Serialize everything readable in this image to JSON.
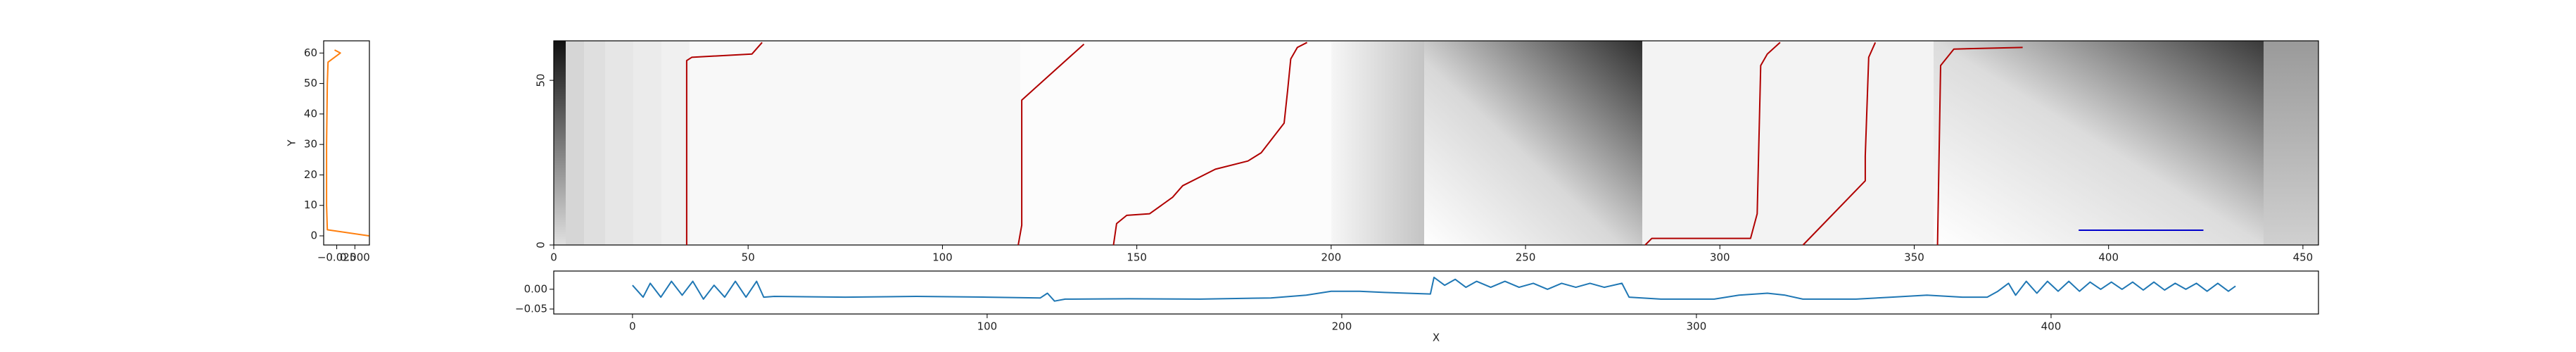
{
  "chart_data": [
    {
      "type": "line-vertical",
      "ylabel": "Y",
      "color": "#ff7f0e",
      "y": [
        0,
        2,
        10,
        30,
        50,
        57,
        60,
        61
      ],
      "values": [
        0.0195,
        -0.038,
        -0.039,
        -0.039,
        -0.038,
        -0.037,
        -0.02,
        -0.028
      ],
      "xlim": [
        -0.043,
        0.02
      ],
      "xticks": [
        {
          "value": -0.025,
          "label": "−0.025"
        },
        {
          "value": 0,
          "label": "0.000"
        }
      ],
      "ylim": [
        -3,
        64
      ],
      "yticks": [
        0,
        10,
        20,
        30,
        40,
        50,
        60
      ]
    },
    {
      "type": "heatmap-path",
      "xlim": [
        0,
        454
      ],
      "xticks": [
        0,
        50,
        100,
        150,
        200,
        250,
        300,
        350,
        400,
        450
      ],
      "ylim": [
        0,
        62
      ],
      "yticks": [
        0,
        50
      ],
      "series": [
        {
          "color": "#b00000",
          "x": [
            34.2,
            34.2,
            35.5,
            51,
            53.6,
            null,
            119.5,
            120.4,
            120.4,
            136.4,
            null,
            144,
            144.8,
            147.4,
            153.3,
            159.2,
            161.8,
            170.2,
            178.6,
            182,
            187.9,
            188.8,
            189.6,
            191.3,
            193.8,
            null,
            280.8,
            282.5,
            307.9,
            309.6,
            310.5,
            312.2,
            315.5,
            null,
            321.4,
            337.4,
            337.4,
            338.3,
            340,
            null,
            356,
            356.8,
            360.2,
            377.9
          ],
          "values": [
            0,
            56,
            57,
            58,
            61.5,
            null,
            0,
            6,
            44,
            61,
            null,
            0,
            6.5,
            9,
            9.5,
            14.5,
            18,
            23,
            25.5,
            28,
            37,
            47,
            56.5,
            60,
            61.5,
            null,
            0,
            2,
            2,
            9.5,
            54.5,
            58,
            61.5,
            null,
            0,
            19.5,
            27,
            57,
            61.5,
            null,
            0,
            54.5,
            59.5,
            60
          ]
        },
        {
          "color": "#0000cc",
          "x": [
            392.3,
            424.4
          ],
          "values": [
            4.5,
            4.5
          ]
        }
      ]
    },
    {
      "type": "line",
      "xlabel": "X",
      "color": "#1f77b4",
      "x": [
        0,
        3,
        5,
        8,
        11,
        14,
        17,
        20,
        23,
        26,
        29,
        32,
        35,
        37,
        40,
        60,
        80,
        100,
        115,
        117,
        119,
        122,
        140,
        160,
        180,
        190,
        197,
        205,
        212,
        225,
        226,
        229,
        232,
        235,
        238,
        242,
        246,
        250,
        254,
        258,
        262,
        266,
        270,
        274,
        279,
        281,
        290,
        305,
        312,
        320,
        325,
        330,
        345,
        355,
        365,
        375,
        382,
        385,
        388,
        390,
        393,
        396,
        399,
        402,
        405,
        408,
        411,
        414,
        417,
        420,
        423,
        426,
        429,
        432,
        435,
        438,
        441,
        444,
        447,
        450,
        452
      ],
      "values": [
        0.01,
        -0.02,
        0.015,
        -0.02,
        0.02,
        -0.015,
        0.02,
        -0.025,
        0.01,
        -0.02,
        0.02,
        -0.02,
        0.02,
        -0.02,
        -0.018,
        -0.02,
        -0.018,
        -0.02,
        -0.022,
        -0.01,
        -0.03,
        -0.025,
        -0.024,
        -0.025,
        -0.022,
        -0.015,
        -0.005,
        -0.005,
        -0.008,
        -0.012,
        0.03,
        0.01,
        0.025,
        0.005,
        0.02,
        0.005,
        0.02,
        0.005,
        0.015,
        0.0,
        0.015,
        0.005,
        0.015,
        0.005,
        0.015,
        -0.02,
        -0.025,
        -0.025,
        -0.015,
        -0.01,
        -0.015,
        -0.025,
        -0.025,
        -0.02,
        -0.015,
        -0.02,
        -0.02,
        -0.005,
        0.015,
        -0.015,
        0.02,
        -0.01,
        0.02,
        -0.005,
        0.02,
        -0.005,
        0.018,
        0.0,
        0.018,
        0.0,
        0.018,
        -0.002,
        0.018,
        -0.002,
        0.015,
        0.0,
        0.015,
        -0.005,
        0.015,
        -0.005,
        0.008
      ],
      "xlim": [
        -22.2,
        475.4
      ],
      "xticks": [
        0,
        100,
        200,
        300,
        400
      ],
      "ylim": [
        -0.0625,
        0.046
      ],
      "yticks": [
        {
          "value": 0,
          "label": "0.00"
        },
        {
          "value": -0.05,
          "label": "−0.05"
        }
      ]
    }
  ]
}
